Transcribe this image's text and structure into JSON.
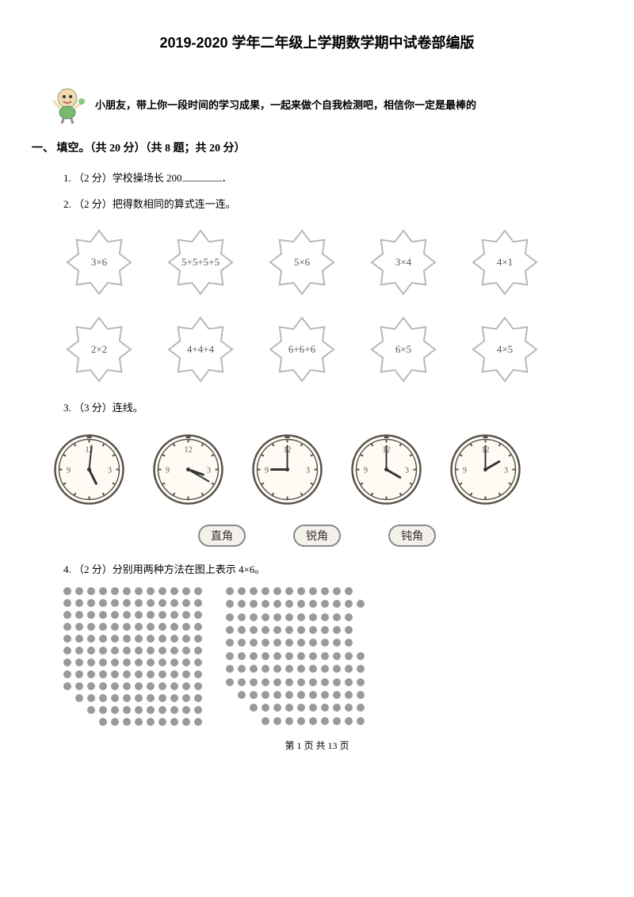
{
  "title": "2019-2020 学年二年级上学期数学期中试卷部编版",
  "intro": "小朋友，带上你一段时间的学习成果，一起来做个自我检测吧，相信你一定是最棒的",
  "section1_head": "一、 填空。（共 20 分）（共 8 题；共 20 分）",
  "q1": "1. （2 分）学校操场长 200",
  "q1_suffix": "．",
  "q2": "2. （2 分）把得数相同的算式连一连。",
  "stars_row1": [
    "3×6",
    "5+5+5+5",
    "5×6",
    "3×4",
    "4×1"
  ],
  "stars_row2": [
    "2×2",
    "4+4+4",
    "6+6+6",
    "6×5",
    "4×5"
  ],
  "q3": "3. （3 分）连线。",
  "clocks": [
    {
      "hour": 5.1,
      "minute": 1
    },
    {
      "hour": 3.3,
      "minute": 20
    },
    {
      "hour": 9,
      "minute": 0
    },
    {
      "hour": 4,
      "minute": 0
    },
    {
      "hour": 2,
      "minute": 0
    }
  ],
  "angle_labels": [
    "直角",
    "锐角",
    "钝角"
  ],
  "q4": "4. （2 分）分别用两种方法在图上表示 4×6。",
  "dot_grid1": {
    "rows": 12,
    "cols": 12,
    "pattern": "step"
  },
  "dot_grid2": {
    "rows": 11,
    "cols": 12,
    "pattern": "step2"
  },
  "footer": "第 1 页 共 13 页",
  "colors": {
    "text": "#000000",
    "star_stroke": "#b8b8b8",
    "clock_stroke": "#5a5245",
    "dot": "#9a9a9a",
    "tag_border": "#888888",
    "tag_bg": "#f4f1eb"
  }
}
